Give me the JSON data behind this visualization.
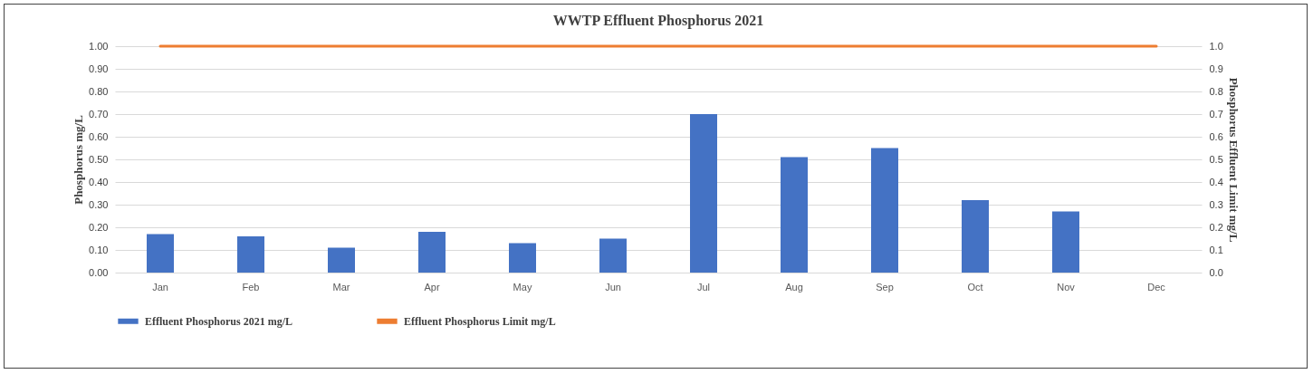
{
  "chart_data": {
    "type": "bar",
    "title": "WWTP  Effluent Phosphorus 2021",
    "ylabel": "Phosphorus mg/L",
    "y2label": "Phosphorus Effluent Limit mg/L",
    "categories": [
      "Jan",
      "Feb",
      "Mar",
      "Apr",
      "May",
      "Jun",
      "Jul",
      "Aug",
      "Sep",
      "Oct",
      "Nov",
      "Dec"
    ],
    "series": [
      {
        "name": "Effluent Phosphorus 2021 mg/L",
        "color": "#4472c4",
        "values": [
          0.17,
          0.16,
          0.11,
          0.18,
          0.13,
          0.15,
          0.7,
          0.51,
          0.55,
          0.32,
          0.27,
          null
        ]
      },
      {
        "name": "Effluent Phosphorus Limit mg/L",
        "type": "line",
        "axis": "y2",
        "color": "#ed7d31",
        "values": [
          1,
          1,
          1,
          1,
          1,
          1,
          1,
          1,
          1,
          1,
          1,
          1
        ]
      }
    ],
    "ylim": [
      0,
      1
    ],
    "yticks": [
      {
        "value": 0,
        "label": "0.00"
      },
      {
        "value": 0.1,
        "label": "0.10"
      },
      {
        "value": 0.2,
        "label": "0.20"
      },
      {
        "value": 0.3,
        "label": "0.30"
      },
      {
        "value": 0.4,
        "label": "0.40"
      },
      {
        "value": 0.5,
        "label": "0.50"
      },
      {
        "value": 0.6,
        "label": "0.60"
      },
      {
        "value": 0.7,
        "label": "0.70"
      },
      {
        "value": 0.8,
        "label": "0.80"
      },
      {
        "value": 0.9,
        "label": "0.90"
      },
      {
        "value": 1,
        "label": "1.00"
      }
    ],
    "y2lim": [
      0,
      1
    ],
    "y2ticks": [
      {
        "value": 0,
        "label": "0.0"
      },
      0.1,
      0.2,
      0.3,
      0.4,
      0.5,
      0.6,
      0.7,
      0.8,
      0.9,
      {
        "value": 1,
        "label": "1.0"
      }
    ],
    "grid": "y",
    "legend": "bottom"
  }
}
